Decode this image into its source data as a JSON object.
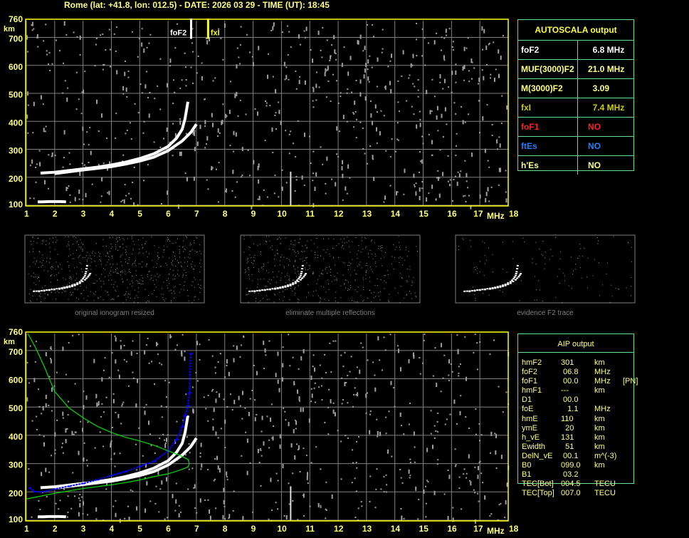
{
  "header": {
    "title": "Rome (lat: +41.8, lon: 012.5) - DATE: 2026 03 29 - TIME (UT): 18:45"
  },
  "colors": {
    "axis": "#ffff00",
    "label": "#ffff80",
    "grid": "#808080",
    "trace": "#ffffff",
    "noise": "#a0a0a0",
    "aip_trace": "#0000ff",
    "profile": "#00dd00",
    "table_border": "#66dd88",
    "foF1": "#ff0000",
    "ftEs": "#0080ff",
    "fxI": "#cccc00"
  },
  "autoscala": {
    "title": "AUTOSCALA output",
    "rows": [
      {
        "key": "foF2",
        "value": "  6.8 MHz",
        "color": "#ffffff"
      },
      {
        "key": "MUF(3000)F2",
        "value": "21.0 MHz",
        "color": "#ffff80"
      },
      {
        "key": "M(3000)F2",
        "value": "  3.09",
        "color": "#ffff80"
      },
      {
        "key": "fxI",
        "value": "  7.4 MHz",
        "color": "#cccc00"
      },
      {
        "key": "foF1",
        "value": "NO",
        "color": "#ff2020"
      },
      {
        "key": "ftEs",
        "value": "NO",
        "color": "#1e7fff"
      },
      {
        "key": "h'Es",
        "value": "NO",
        "color": "#ffff80"
      }
    ]
  },
  "aip": {
    "title": "AIP output",
    "rows": [
      [
        "hmF2",
        "301",
        "km",
        ""
      ],
      [
        "foF2",
        " 06.8",
        "MHz",
        ""
      ],
      [
        "foF1",
        " 00.0",
        "MHz",
        "[PN]"
      ],
      [
        "hmF1",
        "---",
        "km",
        ""
      ],
      [
        "D1",
        " 00.0",
        "",
        ""
      ],
      [
        "foE",
        "   1.1",
        "MHz",
        ""
      ],
      [
        "hmE",
        "110",
        "km",
        ""
      ],
      [
        "ymE",
        "  20",
        "km",
        ""
      ],
      [
        "h_vE",
        "131",
        "km",
        ""
      ],
      [
        "Ewidth",
        "  51",
        "km",
        ""
      ],
      [
        "DelN_vE",
        " 00.1",
        "m^(-3)",
        ""
      ],
      [
        "B0",
        "099.0",
        "km",
        ""
      ],
      [
        "B1",
        " 03.2",
        "",
        ""
      ],
      [
        "TEC[Bot]",
        "004.5",
        "TECU",
        ""
      ],
      [
        "TEC[Top]",
        "007.0",
        "TECU",
        ""
      ]
    ]
  },
  "thumbnails": [
    {
      "caption": "original ionogram resized"
    },
    {
      "caption": "eliminate multiple reflections"
    },
    {
      "caption": "evidence F2 trace"
    }
  ],
  "chart_data": [
    {
      "type": "scatter",
      "xlabel": "MHz",
      "ylabel": "km",
      "xlim": [
        1,
        18
      ],
      "ylim": [
        100,
        760
      ],
      "xticks": [
        "1",
        "2",
        "3",
        "4",
        "5",
        "6",
        "7",
        "8",
        "9",
        "10",
        "11",
        "12",
        "13",
        "14",
        "15",
        "16",
        "17",
        "18"
      ],
      "yticks": [
        "100",
        "200",
        "300",
        "400",
        "500",
        "600",
        "700",
        "760"
      ],
      "grid": true,
      "markers": [
        {
          "label": "foF2",
          "x": 6.8,
          "color": "#ffffff"
        },
        {
          "label": "fxI",
          "x": 7.4,
          "color": "#ffff00"
        }
      ],
      "series": [
        {
          "role": "o-trace",
          "x": [
            1.5,
            2,
            2.5,
            3,
            3.5,
            4,
            4.5,
            5,
            5.5,
            6,
            6.3,
            6.5,
            6.6,
            6.7
          ],
          "y": [
            215,
            218,
            224,
            230,
            236,
            244,
            254,
            267,
            284,
            310,
            340,
            372,
            410,
            470
          ]
        },
        {
          "role": "x-trace",
          "x": [
            2,
            3,
            4,
            4.5,
            5,
            5.5,
            6,
            6.5,
            6.8,
            7
          ],
          "y": [
            213,
            226,
            238,
            247,
            258,
            272,
            295,
            330,
            360,
            390
          ]
        },
        {
          "role": "e-layer",
          "x": [
            1.4,
            1.6,
            1.8,
            2.0,
            2.2,
            2.4
          ],
          "y": [
            112,
            112,
            113,
            113,
            113,
            112
          ]
        }
      ]
    },
    {
      "type": "scatter",
      "xlabel": "MHz",
      "ylabel": "km",
      "xlim": [
        1,
        18
      ],
      "ylim": [
        100,
        760
      ],
      "xticks": [
        "1",
        "2",
        "3",
        "4",
        "5",
        "6",
        "7",
        "8",
        "9",
        "10",
        "11",
        "12",
        "13",
        "14",
        "15",
        "16",
        "17",
        "18"
      ],
      "yticks": [
        "100",
        "200",
        "300",
        "400",
        "500",
        "600",
        "700",
        "760"
      ],
      "grid": true,
      "series": [
        {
          "role": "o-trace",
          "x": [
            1.5,
            2,
            2.5,
            3,
            3.5,
            4,
            4.5,
            5,
            5.5,
            6,
            6.3,
            6.5,
            6.6,
            6.7
          ],
          "y": [
            215,
            218,
            224,
            230,
            236,
            244,
            254,
            267,
            284,
            310,
            340,
            372,
            410,
            470
          ]
        },
        {
          "role": "x-trace",
          "x": [
            2,
            3,
            4,
            4.5,
            5,
            5.5,
            6,
            6.5,
            6.8,
            7
          ],
          "y": [
            213,
            226,
            238,
            247,
            258,
            272,
            295,
            330,
            360,
            390
          ]
        },
        {
          "role": "e-layer",
          "x": [
            1.4,
            1.6,
            1.8,
            2.0,
            2.2,
            2.4
          ],
          "y": [
            112,
            112,
            113,
            113,
            113,
            112
          ]
        },
        {
          "role": "aip-trace",
          "color": "#0000ff",
          "x": [
            1.1,
            1.2,
            1.3,
            1.5,
            1.7,
            2,
            2.5,
            3,
            3.5,
            4,
            4.5,
            5,
            5.5,
            6,
            6.3,
            6.5,
            6.6,
            6.7,
            6.75,
            6.8
          ],
          "y": [
            215,
            207,
            201,
            200,
            203,
            210,
            220,
            230,
            243,
            258,
            272,
            290,
            308,
            345,
            385,
            430,
            470,
            505,
            550,
            690
          ]
        },
        {
          "role": "density-profile",
          "color": "#00dd00",
          "x": [
            1.05,
            1.3,
            1.6,
            2,
            2.5,
            3,
            3.5,
            4,
            4.5,
            5,
            5.5,
            6,
            6.4,
            6.7,
            6.75,
            6.7,
            6.5,
            6.2,
            6,
            5.5,
            5,
            4.5,
            4,
            3,
            2,
            1
          ],
          "y": [
            760,
            715,
            650,
            555,
            497,
            462,
            432,
            410,
            393,
            380,
            365,
            345,
            330,
            315,
            300,
            288,
            280,
            270,
            264,
            254,
            242,
            233,
            225,
            212,
            195,
            175
          ]
        }
      ]
    }
  ]
}
